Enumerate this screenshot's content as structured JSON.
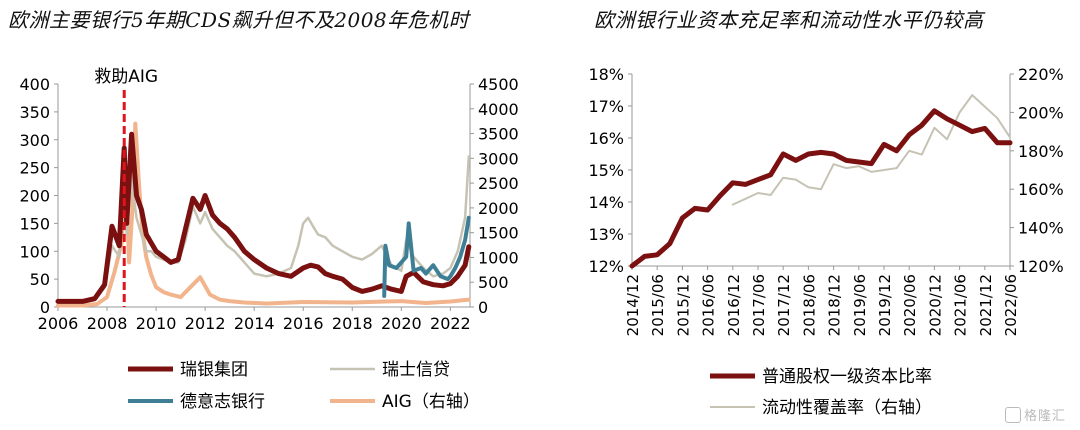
{
  "watermark": "格隆汇",
  "chart_data": [
    {
      "type": "line",
      "title": "欧洲主要银行5年期CDS飙升但不及2008年危机时",
      "annotation": "救助AIG",
      "annotation_x": 2008.7,
      "xlim": [
        2006,
        2022.8
      ],
      "xticks": [
        2006,
        2008,
        2010,
        2012,
        2014,
        2016,
        2018,
        2020,
        2022
      ],
      "ylim_left": [
        0,
        400
      ],
      "yticks_left": [
        0,
        50,
        100,
        150,
        200,
        250,
        300,
        350,
        400
      ],
      "ylim_right": [
        0,
        4500
      ],
      "yticks_right": [
        0,
        500,
        1000,
        1500,
        2000,
        2500,
        3000,
        3500,
        4000,
        4500
      ],
      "grid": false,
      "legend_position": "bottom",
      "series": [
        {
          "name": "瑞银集团",
          "axis": "left",
          "color": "#7a1010",
          "width": 5,
          "x": [
            2006,
            2007,
            2007.5,
            2007.9,
            2008.2,
            2008.5,
            2008.7,
            2008.8,
            2009.0,
            2009.2,
            2009.4,
            2009.6,
            2009.8,
            2010.0,
            2010.3,
            2010.6,
            2010.9,
            2011.2,
            2011.5,
            2011.8,
            2012.0,
            2012.3,
            2012.6,
            2012.9,
            2013.2,
            2013.6,
            2014.0,
            2014.5,
            2015.0,
            2015.5,
            2016.0,
            2016.3,
            2016.6,
            2016.9,
            2017.2,
            2017.6,
            2018.0,
            2018.4,
            2018.8,
            2019.2,
            2019.6,
            2020.0,
            2020.2,
            2020.5,
            2020.9,
            2021.3,
            2021.7,
            2022.0,
            2022.3,
            2022.6,
            2022.75
          ],
          "y": [
            10,
            10,
            15,
            40,
            145,
            110,
            285,
            150,
            310,
            200,
            175,
            130,
            115,
            100,
            90,
            80,
            85,
            140,
            195,
            175,
            200,
            165,
            150,
            140,
            125,
            100,
            85,
            70,
            60,
            55,
            70,
            75,
            72,
            60,
            55,
            50,
            35,
            28,
            32,
            38,
            32,
            28,
            55,
            62,
            45,
            40,
            38,
            42,
            55,
            75,
            108
          ]
        },
        {
          "name": "瑞士信贷",
          "axis": "left",
          "color": "#c6c3b4",
          "width": 2.5,
          "x": [
            2006,
            2007,
            2007.5,
            2007.9,
            2008.2,
            2008.5,
            2008.7,
            2008.8,
            2009.0,
            2009.2,
            2009.4,
            2009.6,
            2009.8,
            2010.0,
            2010.3,
            2010.6,
            2010.9,
            2011.2,
            2011.5,
            2011.8,
            2012.0,
            2012.3,
            2012.6,
            2012.9,
            2013.2,
            2013.6,
            2014.0,
            2014.5,
            2015.0,
            2015.5,
            2015.8,
            2016.0,
            2016.2,
            2016.4,
            2016.6,
            2016.9,
            2017.2,
            2017.6,
            2018.0,
            2018.4,
            2018.8,
            2019.2,
            2019.6,
            2020.0,
            2020.2,
            2020.5,
            2020.9,
            2021.3,
            2021.7,
            2022.0,
            2022.3,
            2022.6,
            2022.75
          ],
          "y": [
            8,
            8,
            12,
            35,
            110,
            90,
            200,
            130,
            230,
            160,
            130,
            100,
            100,
            90,
            85,
            80,
            80,
            120,
            180,
            150,
            170,
            140,
            125,
            110,
            100,
            80,
            60,
            55,
            60,
            70,
            110,
            150,
            160,
            145,
            130,
            125,
            110,
            100,
            90,
            85,
            95,
            110,
            75,
            65,
            120,
            90,
            70,
            55,
            60,
            70,
            100,
            160,
            270
          ]
        },
        {
          "name": "德意志银行",
          "axis": "left",
          "color": "#3f7f96",
          "width": 4,
          "x": [
            2019.3,
            2019.35,
            2019.5,
            2019.8,
            2020.0,
            2020.2,
            2020.3,
            2020.5,
            2020.8,
            2021.0,
            2021.3,
            2021.6,
            2021.9,
            2022.0,
            2022.2,
            2022.4,
            2022.6,
            2022.75
          ],
          "y": [
            20,
            110,
            75,
            70,
            80,
            90,
            150,
            65,
            70,
            60,
            75,
            55,
            50,
            55,
            70,
            90,
            120,
            160
          ]
        },
        {
          "name": "AIG（右轴）",
          "axis": "right",
          "color": "#f2b48c",
          "width": 4,
          "x": [
            2006,
            2007,
            2007.6,
            2008.0,
            2008.3,
            2008.6,
            2008.75,
            2008.9,
            2009.05,
            2009.15,
            2009.3,
            2009.45,
            2009.6,
            2009.8,
            2010.0,
            2010.3,
            2010.6,
            2011.0,
            2011.4,
            2011.8,
            2012.2,
            2012.6,
            2013.0,
            2013.6,
            2014.5,
            2016.0,
            2018.0,
            2020.0,
            2021.0,
            2022.0,
            2022.75
          ],
          "y": [
            30,
            30,
            60,
            200,
            700,
            1300,
            2800,
            900,
            2100,
            3700,
            2500,
            1500,
            1000,
            650,
            400,
            300,
            250,
            200,
            400,
            600,
            250,
            150,
            120,
            90,
            70,
            100,
            90,
            120,
            80,
            110,
            150
          ]
        }
      ]
    },
    {
      "type": "line",
      "title": "欧洲银行业资本充足率和流动性水平仍较高",
      "categories": [
        "2014/12",
        "2015/06",
        "2015/12",
        "2016/06",
        "2016/12",
        "2017/06",
        "2017/12",
        "2018/06",
        "2018/12",
        "2019/06",
        "2019/12",
        "2020/06",
        "2020/12",
        "2021/06",
        "2021/12",
        "2022/06"
      ],
      "ylim_left": [
        12,
        18
      ],
      "yticks_left": [
        "12%",
        "13%",
        "14%",
        "15%",
        "16%",
        "17%",
        "18%"
      ],
      "ylim_right": [
        120,
        220
      ],
      "yticks_right": [
        "120%",
        "140%",
        "160%",
        "180%",
        "200%",
        "220%"
      ],
      "grid": false,
      "legend_position": "bottom",
      "series": [
        {
          "name": "普通股权一级资本比率",
          "axis": "left",
          "color": "#7a1010",
          "width": 5,
          "x": [
            0,
            0.5,
            1,
            1.5,
            2,
            2.5,
            3,
            3.5,
            4,
            4.5,
            5,
            5.5,
            6,
            6.5,
            7,
            7.5,
            8,
            8.5,
            9,
            9.5,
            10,
            10.5,
            11,
            11.5,
            12,
            12.5,
            13,
            13.5,
            14,
            14.5,
            15
          ],
          "y": [
            12.0,
            12.3,
            12.35,
            12.7,
            13.5,
            13.8,
            13.75,
            14.2,
            14.6,
            14.55,
            14.7,
            14.85,
            15.5,
            15.3,
            15.5,
            15.55,
            15.5,
            15.3,
            15.25,
            15.2,
            15.8,
            15.6,
            16.1,
            16.4,
            16.85,
            16.6,
            16.4,
            16.2,
            16.3,
            15.85,
            15.85
          ]
        },
        {
          "name": "流动性覆盖率（右轴）",
          "axis": "right",
          "color": "#c6c3b4",
          "width": 2,
          "x": [
            4,
            4.5,
            5,
            5.5,
            6,
            6.5,
            7,
            7.5,
            8,
            8.5,
            9,
            9.5,
            10,
            10.5,
            11,
            11.5,
            12,
            12.5,
            13,
            13.5,
            14,
            14.5,
            15
          ],
          "y": [
            152,
            155,
            158,
            157,
            166,
            165,
            161,
            160,
            173,
            171,
            172,
            169,
            170,
            171,
            180,
            178,
            192,
            186,
            200,
            209,
            203,
            197,
            187
          ]
        }
      ]
    }
  ]
}
